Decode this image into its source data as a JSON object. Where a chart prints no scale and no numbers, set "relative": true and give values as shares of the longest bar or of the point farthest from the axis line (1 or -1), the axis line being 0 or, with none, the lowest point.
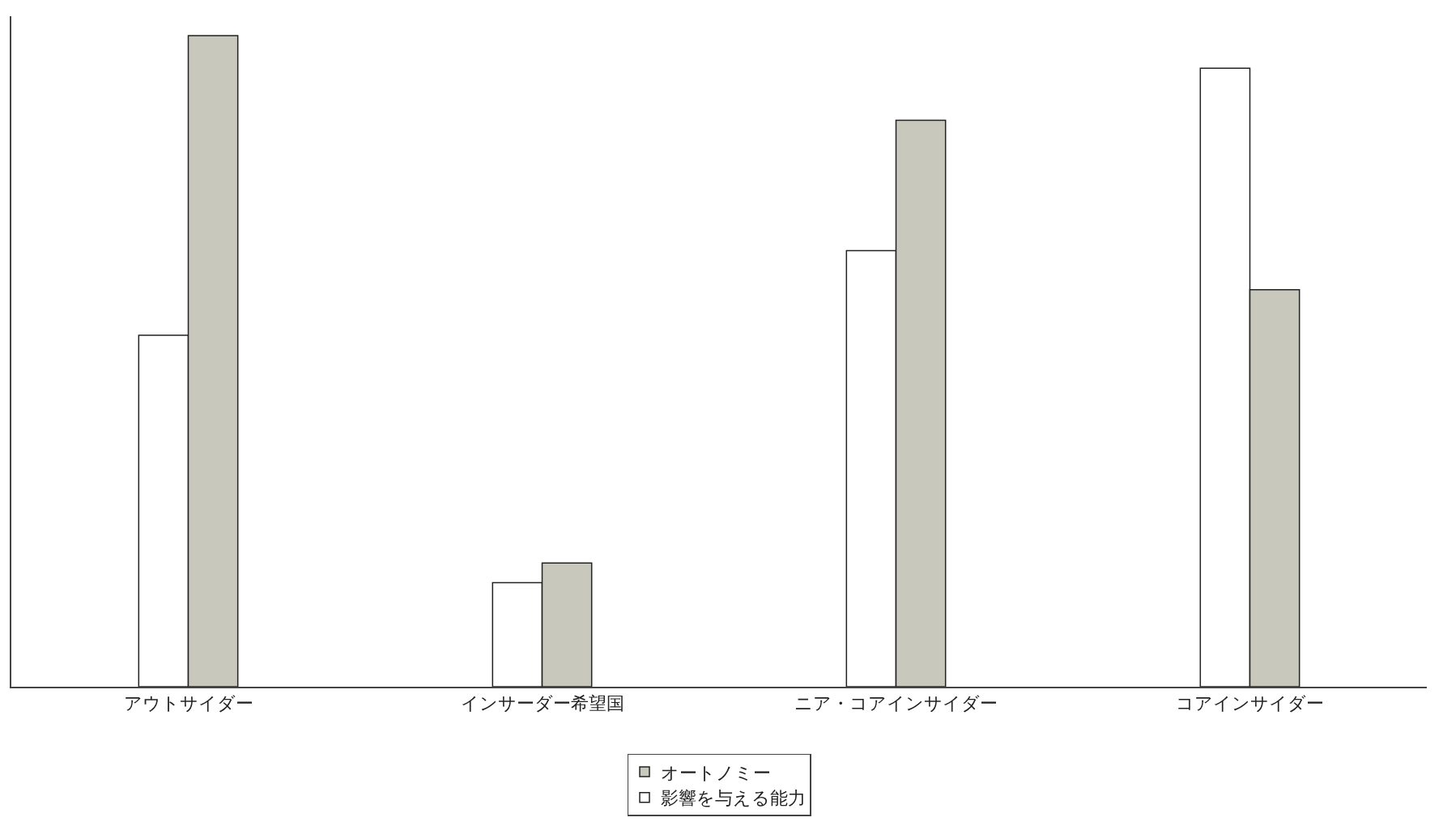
{
  "chart_data": {
    "type": "bar",
    "relative": true,
    "categories": [
      "アウトサイダー",
      "インサーダー希望国",
      "ニア・コアインサイダー",
      "コアインサイダー"
    ],
    "series": [
      {
        "name": "オートノミー",
        "color": "#c8c8bc",
        "values": [
          1,
          0.19,
          0.87,
          0.61
        ]
      },
      {
        "name": "影響を与える能力",
        "color": "#ffffff",
        "values": [
          0.54,
          0.16,
          0.67,
          0.95
        ]
      }
    ],
    "legend": "bottom",
    "grid": false
  }
}
